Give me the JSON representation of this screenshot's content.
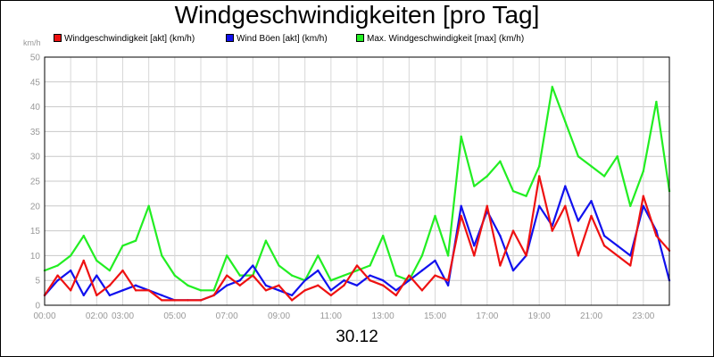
{
  "title": "Windgeschwindigkeiten [pro Tag]",
  "unit": "km/h",
  "date": "30.12",
  "legend": [
    {
      "label": "Windgeschwindigkeit [akt] (km/h)",
      "color": "#ee1111"
    },
    {
      "label": "Wind Böen [akt] (km/h)",
      "color": "#1111ee"
    },
    {
      "label": "Max. Windgeschwindigkeit [max] (km/h)",
      "color": "#22ee22"
    }
  ],
  "chart_data": {
    "type": "line",
    "title": "Windgeschwindigkeiten [pro Tag]",
    "ylabel": "km/h",
    "xlabel": "30.12",
    "ylim": [
      0,
      50
    ],
    "xlim": [
      "00:00",
      "24:00"
    ],
    "grid": true,
    "legend_position": "top",
    "yticks": [
      0,
      5,
      10,
      15,
      20,
      25,
      30,
      35,
      40,
      45,
      50
    ],
    "xticks": [
      {
        "hour": 0,
        "label": "00:00"
      },
      {
        "hour": 2,
        "label": "02:00"
      },
      {
        "hour": 3,
        "label": "03:00"
      },
      {
        "hour": 5,
        "label": "05:00"
      },
      {
        "hour": 7,
        "label": "07:00"
      },
      {
        "hour": 9,
        "label": "09:00"
      },
      {
        "hour": 11,
        "label": "11:00"
      },
      {
        "hour": 13,
        "label": "13:00"
      },
      {
        "hour": 15,
        "label": "15:00"
      },
      {
        "hour": 17,
        "label": "17:00"
      },
      {
        "hour": 19,
        "label": "19:00"
      },
      {
        "hour": 21,
        "label": "21:00"
      },
      {
        "hour": 23,
        "label": "23:00"
      }
    ],
    "x": [
      "00:00",
      "00:30",
      "01:00",
      "01:30",
      "02:00",
      "02:30",
      "03:00",
      "03:30",
      "04:00",
      "04:30",
      "05:00",
      "05:30",
      "06:00",
      "06:30",
      "07:00",
      "07:30",
      "08:00",
      "08:30",
      "09:00",
      "09:30",
      "10:00",
      "10:30",
      "11:00",
      "11:30",
      "12:00",
      "12:30",
      "13:00",
      "13:30",
      "14:00",
      "14:30",
      "15:00",
      "15:30",
      "16:00",
      "16:30",
      "17:00",
      "17:30",
      "18:00",
      "18:30",
      "19:00",
      "19:30",
      "20:00",
      "20:30",
      "21:00",
      "21:30",
      "22:00",
      "22:30",
      "23:00",
      "23:30",
      "24:00"
    ],
    "series": [
      {
        "name": "Max. Windgeschwindigkeit [max] (km/h)",
        "color": "#22ee22",
        "values": [
          7,
          8,
          10,
          14,
          9,
          7,
          12,
          13,
          20,
          10,
          6,
          4,
          3,
          3,
          10,
          6,
          6,
          13,
          8,
          6,
          5,
          10,
          5,
          6,
          7,
          8,
          14,
          6,
          5,
          10,
          18,
          10,
          34,
          24,
          26,
          29,
          23,
          22,
          28,
          44,
          37,
          30,
          28,
          26,
          30,
          20,
          27,
          41,
          23
        ]
      },
      {
        "name": "Wind Böen [akt] (km/h)",
        "color": "#1111ee",
        "values": [
          2,
          5,
          7,
          2,
          6,
          2,
          3,
          4,
          3,
          2,
          1,
          1,
          1,
          2,
          4,
          5,
          8,
          4,
          3,
          2,
          5,
          7,
          3,
          5,
          4,
          6,
          5,
          3,
          5,
          7,
          9,
          4,
          20,
          12,
          19,
          14,
          7,
          10,
          20,
          16,
          24,
          17,
          21,
          14,
          12,
          10,
          20,
          15,
          5
        ]
      },
      {
        "name": "Windgeschwindigkeit [akt] (km/h)",
        "color": "#ee1111",
        "values": [
          2,
          6,
          3,
          9,
          2,
          4,
          7,
          3,
          3,
          1,
          1,
          1,
          1,
          2,
          6,
          4,
          6,
          3,
          4,
          1,
          3,
          4,
          2,
          4,
          8,
          5,
          4,
          2,
          6,
          3,
          6,
          5,
          18,
          10,
          20,
          8,
          15,
          10,
          26,
          15,
          20,
          10,
          18,
          12,
          10,
          8,
          22,
          14,
          11
        ]
      }
    ]
  }
}
